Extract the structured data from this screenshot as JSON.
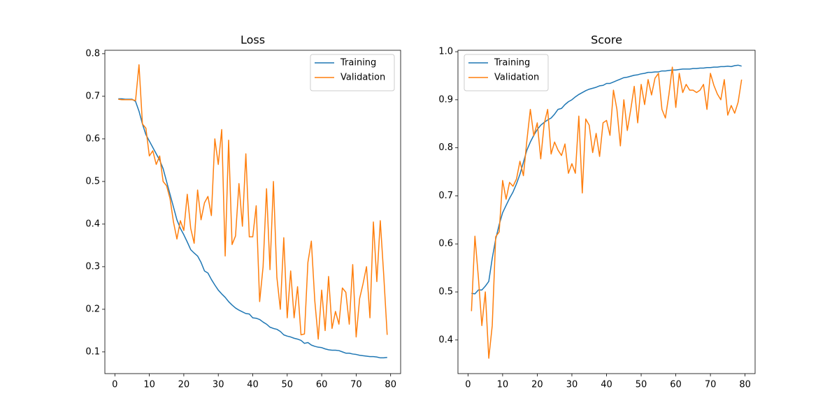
{
  "chart_data": [
    {
      "type": "line",
      "title": "Loss",
      "legend": "upper right",
      "x": [
        1,
        2,
        3,
        4,
        5,
        6,
        7,
        8,
        9,
        10,
        11,
        12,
        13,
        14,
        15,
        16,
        17,
        18,
        19,
        20,
        21,
        22,
        23,
        24,
        25,
        26,
        27,
        28,
        29,
        30,
        31,
        32,
        33,
        34,
        35,
        36,
        37,
        38,
        39,
        40,
        41,
        42,
        43,
        44,
        45,
        46,
        47,
        48,
        49,
        50,
        51,
        52,
        53,
        54,
        55,
        56,
        57,
        58,
        59,
        60,
        61,
        62,
        63,
        64,
        65,
        66,
        67,
        68,
        69,
        70,
        71,
        72,
        73,
        74,
        75,
        76,
        77,
        78,
        79
      ],
      "xlim": [
        -2.9,
        82.9
      ],
      "xticks": [
        0,
        10,
        20,
        30,
        40,
        50,
        60,
        70,
        80
      ],
      "ylim": [
        0.049,
        0.808
      ],
      "yticks": [
        0.1,
        0.2,
        0.3,
        0.4,
        0.5,
        0.6,
        0.7,
        0.8
      ],
      "series": [
        {
          "name": "Training",
          "color": "#1f77b4",
          "values": [
            0.694,
            0.694,
            0.693,
            0.693,
            0.693,
            0.688,
            0.665,
            0.635,
            0.61,
            0.595,
            0.58,
            0.565,
            0.55,
            0.53,
            0.5,
            0.47,
            0.44,
            0.41,
            0.39,
            0.375,
            0.358,
            0.34,
            0.332,
            0.325,
            0.31,
            0.29,
            0.285,
            0.27,
            0.257,
            0.245,
            0.236,
            0.228,
            0.218,
            0.21,
            0.203,
            0.198,
            0.194,
            0.19,
            0.189,
            0.18,
            0.179,
            0.176,
            0.17,
            0.165,
            0.158,
            0.155,
            0.153,
            0.148,
            0.14,
            0.137,
            0.135,
            0.132,
            0.13,
            0.127,
            0.12,
            0.122,
            0.116,
            0.113,
            0.111,
            0.11,
            0.107,
            0.105,
            0.104,
            0.104,
            0.103,
            0.1,
            0.097,
            0.097,
            0.095,
            0.094,
            0.092,
            0.091,
            0.09,
            0.089,
            0.089,
            0.088,
            0.086,
            0.086,
            0.087
          ]
        },
        {
          "name": "Validation",
          "color": "#ff7f0e",
          "values": [
            0.693,
            0.692,
            0.692,
            0.692,
            0.692,
            0.69,
            0.774,
            0.635,
            0.625,
            0.56,
            0.572,
            0.54,
            0.56,
            0.5,
            0.49,
            0.46,
            0.405,
            0.365,
            0.408,
            0.385,
            0.47,
            0.39,
            0.355,
            0.48,
            0.41,
            0.45,
            0.465,
            0.42,
            0.6,
            0.54,
            0.622,
            0.325,
            0.597,
            0.352,
            0.372,
            0.495,
            0.395,
            0.565,
            0.37,
            0.37,
            0.443,
            0.218,
            0.3,
            0.483,
            0.293,
            0.5,
            0.275,
            0.2,
            0.368,
            0.18,
            0.29,
            0.18,
            0.253,
            0.14,
            0.142,
            0.31,
            0.36,
            0.22,
            0.13,
            0.245,
            0.15,
            0.277,
            0.155,
            0.195,
            0.165,
            0.25,
            0.24,
            0.165,
            0.305,
            0.135,
            0.225,
            0.26,
            0.3,
            0.18,
            0.405,
            0.265,
            0.408,
            0.28,
            0.14
          ]
        }
      ]
    },
    {
      "type": "line",
      "title": "Score",
      "legend": "upper left",
      "x": [
        1,
        2,
        3,
        4,
        5,
        6,
        7,
        8,
        9,
        10,
        11,
        12,
        13,
        14,
        15,
        16,
        17,
        18,
        19,
        20,
        21,
        22,
        23,
        24,
        25,
        26,
        27,
        28,
        29,
        30,
        31,
        32,
        33,
        34,
        35,
        36,
        37,
        38,
        39,
        40,
        41,
        42,
        43,
        44,
        45,
        46,
        47,
        48,
        49,
        50,
        51,
        52,
        53,
        54,
        55,
        56,
        57,
        58,
        59,
        60,
        61,
        62,
        63,
        64,
        65,
        66,
        67,
        68,
        69,
        70,
        71,
        72,
        73,
        74,
        75,
        76,
        77,
        78,
        79
      ],
      "xlim": [
        -2.9,
        82.9
      ],
      "xticks": [
        0,
        10,
        20,
        30,
        40,
        50,
        60,
        70,
        80
      ],
      "ylim": [
        0.33,
        1.003
      ],
      "yticks": [
        0.4,
        0.5,
        0.6,
        0.7,
        0.8,
        0.9,
        {
          "value": 1,
          "label": "1.0"
        }
      ],
      "series": [
        {
          "name": "Training",
          "color": "#1f77b4",
          "values": [
            0.497,
            0.496,
            0.504,
            0.504,
            0.512,
            0.522,
            0.57,
            0.61,
            0.64,
            0.665,
            0.68,
            0.695,
            0.708,
            0.725,
            0.745,
            0.77,
            0.795,
            0.812,
            0.826,
            0.838,
            0.847,
            0.853,
            0.858,
            0.862,
            0.87,
            0.88,
            0.882,
            0.89,
            0.896,
            0.9,
            0.906,
            0.911,
            0.915,
            0.919,
            0.922,
            0.924,
            0.926,
            0.929,
            0.93,
            0.934,
            0.934,
            0.937,
            0.94,
            0.943,
            0.946,
            0.947,
            0.949,
            0.951,
            0.952,
            0.954,
            0.955,
            0.957,
            0.957,
            0.958,
            0.958,
            0.96,
            0.96,
            0.961,
            0.962,
            0.962,
            0.963,
            0.964,
            0.964,
            0.964,
            0.965,
            0.965,
            0.966,
            0.966,
            0.967,
            0.967,
            0.968,
            0.968,
            0.969,
            0.969,
            0.97,
            0.969,
            0.971,
            0.972,
            0.97
          ]
        },
        {
          "name": "Validation",
          "color": "#ff7f0e",
          "values": [
            0.46,
            0.616,
            0.53,
            0.43,
            0.5,
            0.362,
            0.43,
            0.615,
            0.625,
            0.732,
            0.693,
            0.728,
            0.72,
            0.735,
            0.772,
            0.742,
            0.815,
            0.88,
            0.825,
            0.852,
            0.777,
            0.85,
            0.88,
            0.787,
            0.812,
            0.795,
            0.784,
            0.808,
            0.747,
            0.767,
            0.747,
            0.866,
            0.706,
            0.86,
            0.847,
            0.79,
            0.83,
            0.782,
            0.852,
            0.857,
            0.826,
            0.92,
            0.88,
            0.804,
            0.9,
            0.836,
            0.88,
            0.928,
            0.852,
            0.932,
            0.89,
            0.942,
            0.91,
            0.945,
            0.955,
            0.88,
            0.862,
            0.91,
            0.968,
            0.884,
            0.955,
            0.915,
            0.932,
            0.92,
            0.92,
            0.915,
            0.92,
            0.932,
            0.88,
            0.955,
            0.93,
            0.912,
            0.9,
            0.942,
            0.868,
            0.888,
            0.872,
            0.895,
            0.942
          ]
        }
      ]
    }
  ]
}
